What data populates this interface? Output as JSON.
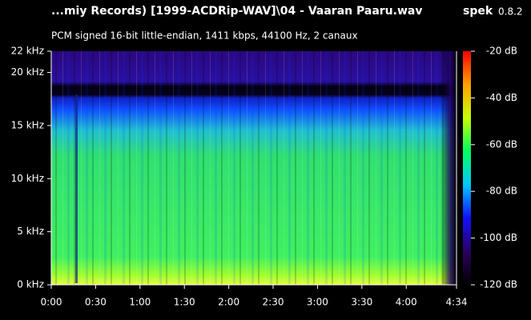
{
  "chart_data": {
    "type": "spectrogram",
    "title": "...miy Records) [1999-ACDRip-WAV]\\04 - Vaaran Paaru.wav",
    "app": "spek",
    "version": "0.8.2",
    "subtitle": "PCM signed 16-bit little-endian, 1411 kbps, 44100 Hz, 2 canaux",
    "xlim": [
      0,
      274
    ],
    "xticks": [
      {
        "value": 0,
        "label": "0:00"
      },
      {
        "value": 30,
        "label": "0:30"
      },
      {
        "value": 60,
        "label": "1:00"
      },
      {
        "value": 90,
        "label": "1:30"
      },
      {
        "value": 120,
        "label": "2:00"
      },
      {
        "value": 150,
        "label": "2:30"
      },
      {
        "value": 180,
        "label": "3:00"
      },
      {
        "value": 210,
        "label": "3:30"
      },
      {
        "value": 240,
        "label": "4:00"
      },
      {
        "value": 274,
        "label": "4:34"
      }
    ],
    "ylim": [
      0,
      22
    ],
    "yticks": [
      {
        "value": 0,
        "label": "0 kHz"
      },
      {
        "value": 5,
        "label": "5 kHz"
      },
      {
        "value": 10,
        "label": "10 kHz"
      },
      {
        "value": 15,
        "label": "15 kHz"
      },
      {
        "value": 20,
        "label": "20 kHz"
      },
      {
        "value": 22,
        "label": "22 kHz"
      }
    ],
    "clim": [
      -120,
      -20
    ],
    "cticks": [
      {
        "value": -20,
        "label": "-20 dB"
      },
      {
        "value": -40,
        "label": "-40 dB"
      },
      {
        "value": -60,
        "label": "-60 dB"
      },
      {
        "value": -80,
        "label": "-80 dB"
      },
      {
        "value": -100,
        "label": "-100 dB"
      },
      {
        "value": -120,
        "label": "-120 dB"
      }
    ],
    "colormap": [
      "#000000",
      "#2a0060",
      "#1010ff",
      "#00c8ff",
      "#00ff60",
      "#c8ff00",
      "#ffa000",
      "#ff0000"
    ]
  }
}
